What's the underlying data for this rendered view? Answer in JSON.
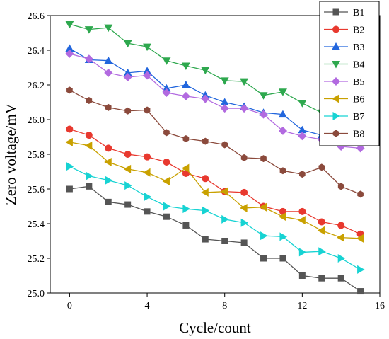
{
  "chart_data": {
    "type": "line",
    "xlabel": "Cycle/count",
    "ylabel": "Zero voltage/mV",
    "xlim": [
      -1,
      16
    ],
    "ylim": [
      25.0,
      26.6
    ],
    "xticks": [
      0,
      4,
      8,
      12,
      16
    ],
    "yticks": [
      25.0,
      25.2,
      25.4,
      25.6,
      25.8,
      26.0,
      26.2,
      26.4,
      26.6
    ],
    "grid": false,
    "legend_position": "top-right",
    "x": [
      0,
      1,
      2,
      3,
      4,
      5,
      6,
      7,
      8,
      9,
      10,
      11,
      12,
      13,
      14,
      15
    ],
    "series": [
      {
        "name": "B1",
        "color": "#555555",
        "marker": "square",
        "values": [
          25.6,
          25.615,
          25.525,
          25.51,
          25.47,
          25.44,
          25.39,
          25.31,
          25.3,
          25.29,
          25.2,
          25.2,
          25.1,
          25.085,
          25.085,
          25.01
        ]
      },
      {
        "name": "B2",
        "color": "#e8392f",
        "marker": "circle",
        "values": [
          25.945,
          25.91,
          25.835,
          25.8,
          25.785,
          25.755,
          25.69,
          25.66,
          25.585,
          25.58,
          25.5,
          25.47,
          25.47,
          25.41,
          25.39,
          25.34
        ]
      },
      {
        "name": "B3",
        "color": "#2266dd",
        "marker": "triangle-up",
        "values": [
          26.41,
          26.345,
          26.34,
          26.27,
          26.28,
          26.18,
          26.2,
          26.14,
          26.1,
          26.075,
          26.04,
          26.03,
          25.94,
          25.91,
          25.91,
          25.89
        ]
      },
      {
        "name": "B4",
        "color": "#2ea84e",
        "marker": "triangle-down",
        "values": [
          26.55,
          26.52,
          26.53,
          26.44,
          26.42,
          26.34,
          26.31,
          26.285,
          26.225,
          26.22,
          26.14,
          26.16,
          26.095,
          26.04,
          26.01,
          26.005
        ]
      },
      {
        "name": "B5",
        "color": "#b26ae0",
        "marker": "diamond",
        "values": [
          26.38,
          26.35,
          26.27,
          26.245,
          26.255,
          26.155,
          26.135,
          26.12,
          26.065,
          26.065,
          26.03,
          25.935,
          25.905,
          25.885,
          25.845,
          25.835
        ]
      },
      {
        "name": "B6",
        "color": "#c9a100",
        "marker": "triangle-left",
        "values": [
          25.87,
          25.85,
          25.755,
          25.715,
          25.695,
          25.645,
          25.72,
          25.58,
          25.585,
          25.49,
          25.495,
          25.44,
          25.42,
          25.36,
          25.32,
          25.315
        ]
      },
      {
        "name": "B7",
        "color": "#17d3d3",
        "marker": "triangle-right",
        "values": [
          25.73,
          25.675,
          25.65,
          25.62,
          25.555,
          25.5,
          25.485,
          25.475,
          25.425,
          25.405,
          25.33,
          25.325,
          25.235,
          25.24,
          25.2,
          25.135
        ]
      },
      {
        "name": "B8",
        "color": "#8b4a3c",
        "marker": "hexagon",
        "values": [
          26.17,
          26.11,
          26.07,
          26.05,
          26.055,
          25.925,
          25.89,
          25.875,
          25.855,
          25.78,
          25.775,
          25.705,
          25.685,
          25.725,
          25.615,
          25.57
        ]
      }
    ]
  }
}
